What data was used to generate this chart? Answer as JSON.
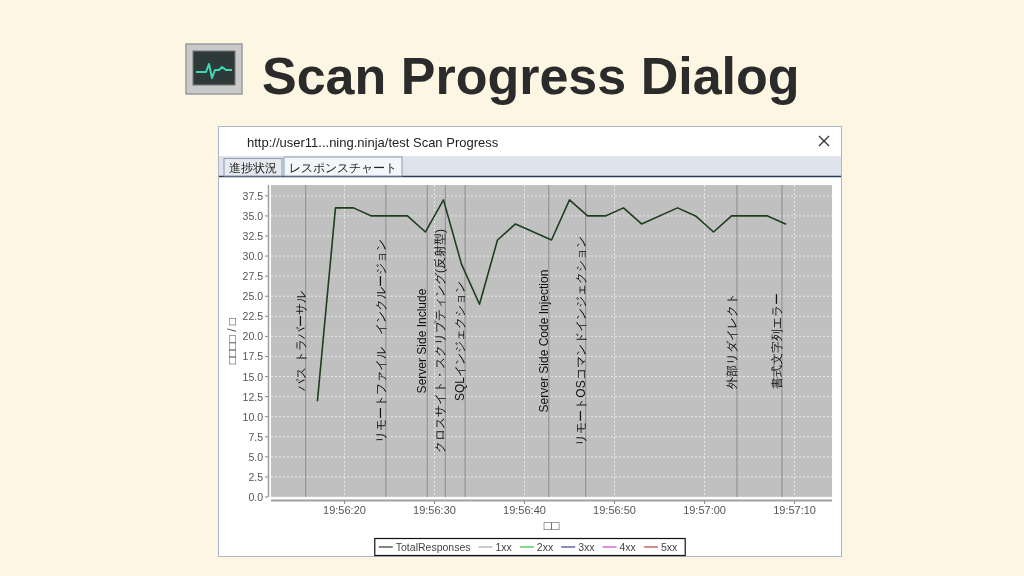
{
  "chart_data": {
    "type": "line",
    "title": "Scan Progress Dialog",
    "annotations": [
      "http://user11...ning.ninja/test Scan Progress",
      "進捗状況",
      "レスポンスチャート"
    ],
    "xlabel": "□□",
    "ylabel": "□□□□ / □",
    "x": [
      19.938056,
      19.938611,
      19.939167,
      19.939722,
      19.940833,
      19.941389,
      19.941944,
      19.9425,
      19.943056,
      19.943611,
      19.944167,
      19.945278,
      19.945833,
      19.946389,
      19.946944,
      19.9475,
      19.948056,
      19.949167,
      19.949722,
      19.950278,
      19.950833,
      19.951944,
      19.9525
    ],
    "series": [
      {
        "name": "TotalResponses",
        "color": "#1f3d1f",
        "values": [
          12,
          36,
          36,
          35,
          35,
          33,
          37,
          29,
          24,
          32,
          34,
          32,
          37,
          35,
          35,
          36,
          34,
          36,
          35,
          33,
          35,
          35,
          34
        ]
      },
      {
        "name": "1xx",
        "color": "#a8a8a8",
        "values": [
          null,
          null,
          null,
          null,
          null,
          null,
          null,
          null,
          null,
          null,
          null,
          null,
          null,
          null,
          null,
          null,
          null,
          null,
          null,
          null,
          null,
          null,
          null
        ]
      },
      {
        "name": "2xx",
        "color": "#3cb83c",
        "values": [
          null,
          null,
          null,
          null,
          null,
          null,
          null,
          null,
          null,
          null,
          null,
          null,
          null,
          null,
          null,
          null,
          null,
          null,
          null,
          null,
          null,
          null,
          null
        ]
      },
      {
        "name": "3xx",
        "color": "#3b3b8f",
        "values": [
          null,
          null,
          null,
          null,
          null,
          null,
          null,
          null,
          null,
          null,
          null,
          null,
          null,
          null,
          null,
          null,
          null,
          null,
          null,
          null,
          null,
          null,
          null
        ]
      },
      {
        "name": "4xx",
        "color": "#c048c0",
        "values": [
          null,
          null,
          null,
          null,
          null,
          null,
          null,
          null,
          null,
          null,
          null,
          null,
          null,
          null,
          null,
          null,
          null,
          null,
          null,
          null,
          null,
          null,
          null
        ]
      },
      {
        "name": "5xx",
        "color": "#b84040",
        "values": [
          null,
          null,
          null,
          null,
          null,
          null,
          null,
          null,
          null,
          null,
          null,
          null,
          null,
          null,
          null,
          null,
          null,
          null,
          null,
          null,
          null,
          null,
          null
        ]
      }
    ],
    "xlim": [
      19.936622,
      19.953933
    ],
    "xticks": [
      {
        "value": 19.938889,
        "label": "19:56:20"
      },
      {
        "value": 19.941667,
        "label": "19:56:30"
      },
      {
        "value": 19.944444,
        "label": "19:56:40"
      },
      {
        "value": 19.947222,
        "label": "19:56:50"
      },
      {
        "value": 19.95,
        "label": "19:57:00"
      },
      {
        "value": 19.952778,
        "label": "19:57:10"
      }
    ],
    "ylim": [
      0,
      38.85
    ],
    "yticks": [
      {
        "value": 0,
        "label": "0.0"
      },
      2.5,
      {
        "value": 5,
        "label": "5.0"
      },
      7.5,
      {
        "value": 10,
        "label": "10.0"
      },
      12.5,
      {
        "value": 15,
        "label": "15.0"
      },
      17.5,
      {
        "value": 20,
        "label": "20.0"
      },
      22.5,
      {
        "value": 25,
        "label": "25.0"
      },
      27.5,
      {
        "value": 30,
        "label": "30.0"
      },
      32.5,
      {
        "value": 35,
        "label": "35.0"
      },
      37.5
    ],
    "ref_lines": [
      {
        "axis": "x",
        "value": 19.937694,
        "label": "パス トラバーサル",
        "color": "#8c8c8c"
      },
      {
        "axis": "x",
        "value": 19.940167,
        "label": "リモートファイル　インクルージョン",
        "color": "#8c8c8c"
      },
      {
        "axis": "x",
        "value": 19.941444,
        "label": "Server Side Include",
        "color": "#8c8c8c"
      },
      {
        "axis": "x",
        "value": 19.942,
        "label": "クロスサイト・スクリプティング(反射型)",
        "color": "#8c8c8c"
      },
      {
        "axis": "x",
        "value": 19.942611,
        "label": "SQLインジェクション",
        "color": "#8c8c8c"
      },
      {
        "axis": "x",
        "value": 19.945194,
        "label": "Server Side Code Injection",
        "color": "#8c8c8c"
      },
      {
        "axis": "x",
        "value": 19.946333,
        "label": "リモートOSコマンドインジェクション",
        "color": "#8c8c8c"
      },
      {
        "axis": "x",
        "value": 19.951,
        "label": "外部リダイレクト",
        "color": "#8c8c8c"
      },
      {
        "axis": "x",
        "value": 19.952389,
        "label": "書式文字列エラー",
        "color": "#8c8c8c"
      }
    ],
    "grid": true,
    "legend": "bottom"
  }
}
